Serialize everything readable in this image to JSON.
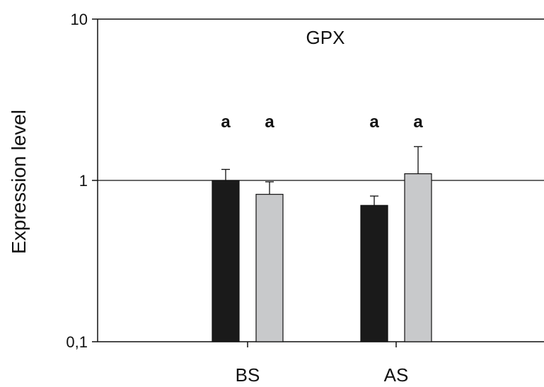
{
  "chart_data": {
    "type": "bar",
    "title": "GPX",
    "xlabel": "",
    "ylabel": "Expression level",
    "yscale": "log",
    "ylim": [
      0.1,
      10
    ],
    "yticks": [
      {
        "value": 0.1,
        "label": "0,1"
      },
      {
        "value": 1,
        "label": "1"
      },
      {
        "value": 10,
        "label": "10"
      }
    ],
    "reference_line": 1,
    "categories": [
      "BS",
      "AS"
    ],
    "series": [
      {
        "color": "#1a1a1a",
        "values": [
          1.0,
          0.7
        ],
        "errors": [
          0.17,
          0.1
        ],
        "labels": [
          "a",
          "a"
        ]
      },
      {
        "color": "#c8c9cb",
        "values": [
          0.82,
          1.1
        ],
        "errors": [
          0.16,
          0.52
        ],
        "labels": [
          "a",
          "a"
        ]
      }
    ],
    "grid": false,
    "legend": "none"
  }
}
